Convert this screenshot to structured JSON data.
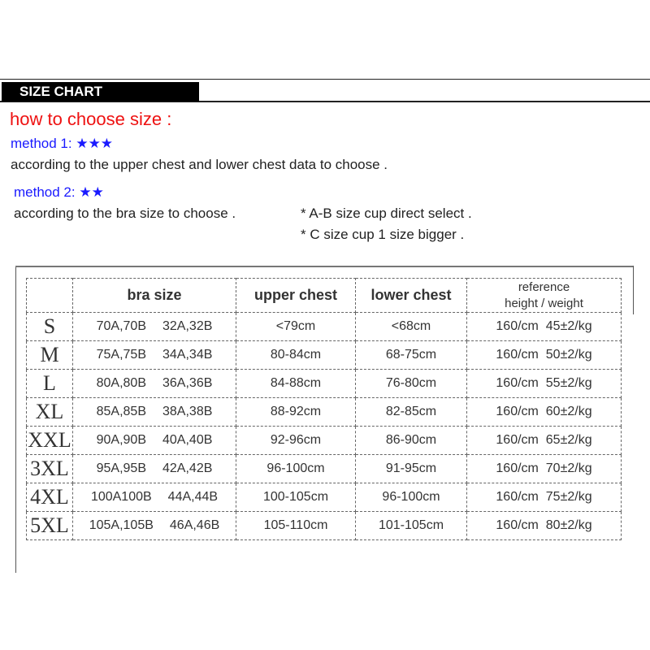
{
  "header": {
    "title": "SIZE CHART"
  },
  "guide": {
    "heading": "how to choose size :",
    "method1": {
      "label": "method 1: ★★★",
      "text": "according to the upper chest and lower chest data to choose ."
    },
    "method2": {
      "label": "method 2: ★★",
      "text": "according to the bra size to choose .",
      "note1": "* A-B size cup direct select .",
      "note2": "* C size cup 1 size bigger ."
    }
  },
  "colors": {
    "heading": "#ee1111",
    "method": "#1a1aff"
  },
  "table": {
    "columns": [
      "",
      "bra size",
      "upper chest",
      "lower chest",
      "reference",
      "height / weight"
    ],
    "rows": [
      {
        "size": "S",
        "bra1": "70A,70B",
        "bra2": "32A,32B",
        "upper": "<79cm",
        "lower": "<68cm",
        "ref": "160/cm  45±2/kg"
      },
      {
        "size": "M",
        "bra1": "75A,75B",
        "bra2": "34A,34B",
        "upper": "80-84cm",
        "lower": "68-75cm",
        "ref": "160/cm  50±2/kg"
      },
      {
        "size": "L",
        "bra1": "80A,80B",
        "bra2": "36A,36B",
        "upper": "84-88cm",
        "lower": "76-80cm",
        "ref": "160/cm  55±2/kg"
      },
      {
        "size": "XL",
        "bra1": "85A,85B",
        "bra2": "38A,38B",
        "upper": "88-92cm",
        "lower": "82-85cm",
        "ref": "160/cm  60±2/kg"
      },
      {
        "size": "XXL",
        "bra1": "90A,90B",
        "bra2": "40A,40B",
        "upper": "92-96cm",
        "lower": "86-90cm",
        "ref": "160/cm  65±2/kg"
      },
      {
        "size": "3XL",
        "bra1": "95A,95B",
        "bra2": "42A,42B",
        "upper": "96-100cm",
        "lower": "91-95cm",
        "ref": "160/cm  70±2/kg"
      },
      {
        "size": "4XL",
        "bra1": "100A100B",
        "bra2": "44A,44B",
        "upper": "100-105cm",
        "lower": "96-100cm",
        "ref": "160/cm  75±2/kg"
      },
      {
        "size": "5XL",
        "bra1": "105A,105B",
        "bra2": "46A,46B",
        "upper": "105-110cm",
        "lower": "101-105cm",
        "ref": "160/cm  80±2/kg"
      }
    ]
  }
}
